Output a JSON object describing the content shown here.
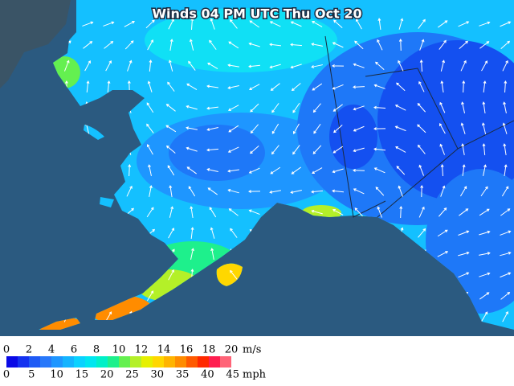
{
  "title": "Winds 04 PM UTC Thu Oct 20",
  "legend": {
    "colors": [
      "#0a0ae6",
      "#1432f0",
      "#1e5af5",
      "#2878fa",
      "#1e96ff",
      "#14b4ff",
      "#0ad2ff",
      "#00e6f0",
      "#00f0c8",
      "#1ef08c",
      "#64f050",
      "#b4f028",
      "#e6f000",
      "#ffd700",
      "#ffb400",
      "#ff8c00",
      "#ff5a00",
      "#ff2800",
      "#ff1e50",
      "#ff6478"
    ],
    "ms_labels": [
      0,
      2,
      4,
      6,
      8,
      10,
      12,
      14,
      16,
      18,
      20
    ],
    "ms_unit": "m/s",
    "mph_labels": [
      0,
      5,
      10,
      15,
      20,
      25,
      30,
      35,
      40,
      45
    ],
    "mph_unit": "mph"
  }
}
